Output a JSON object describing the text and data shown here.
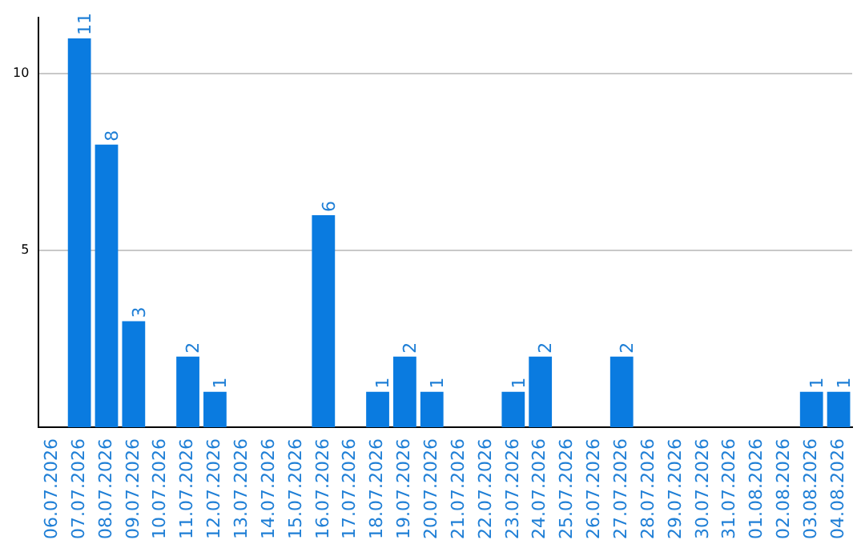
{
  "chart_data": {
    "type": "bar",
    "categories": [
      "06.07.2026",
      "07.07.2026",
      "08.07.2026",
      "09.07.2026",
      "10.07.2026",
      "11.07.2026",
      "12.07.2026",
      "13.07.2026",
      "14.07.2026",
      "15.07.2026",
      "16.07.2026",
      "17.07.2026",
      "18.07.2026",
      "19.07.2026",
      "20.07.2026",
      "21.07.2026",
      "22.07.2026",
      "23.07.2026",
      "24.07.2026",
      "25.07.2026",
      "26.07.2026",
      "27.07.2026",
      "28.07.2026",
      "29.07.2026",
      "30.07.2026",
      "31.07.2026",
      "01.08.2026",
      "02.08.2026",
      "03.08.2026",
      "04.08.2026"
    ],
    "values": [
      0,
      11,
      8,
      3,
      0,
      2,
      1,
      0,
      0,
      0,
      6,
      0,
      1,
      2,
      1,
      0,
      0,
      1,
      2,
      0,
      0,
      2,
      0,
      0,
      0,
      0,
      0,
      0,
      1,
      1
    ],
    "value_labels": [
      null,
      "11",
      "8",
      "3",
      null,
      "2",
      "1",
      null,
      null,
      null,
      "6",
      null,
      "1",
      "2",
      "1",
      null,
      null,
      "1",
      "2",
      null,
      null,
      "2",
      null,
      null,
      null,
      null,
      null,
      null,
      "1",
      "1"
    ],
    "color": "#0a7be0",
    "ylim": [
      0,
      11.6
    ],
    "yticks": [
      5,
      10
    ],
    "grid": "y",
    "legend": false
  }
}
